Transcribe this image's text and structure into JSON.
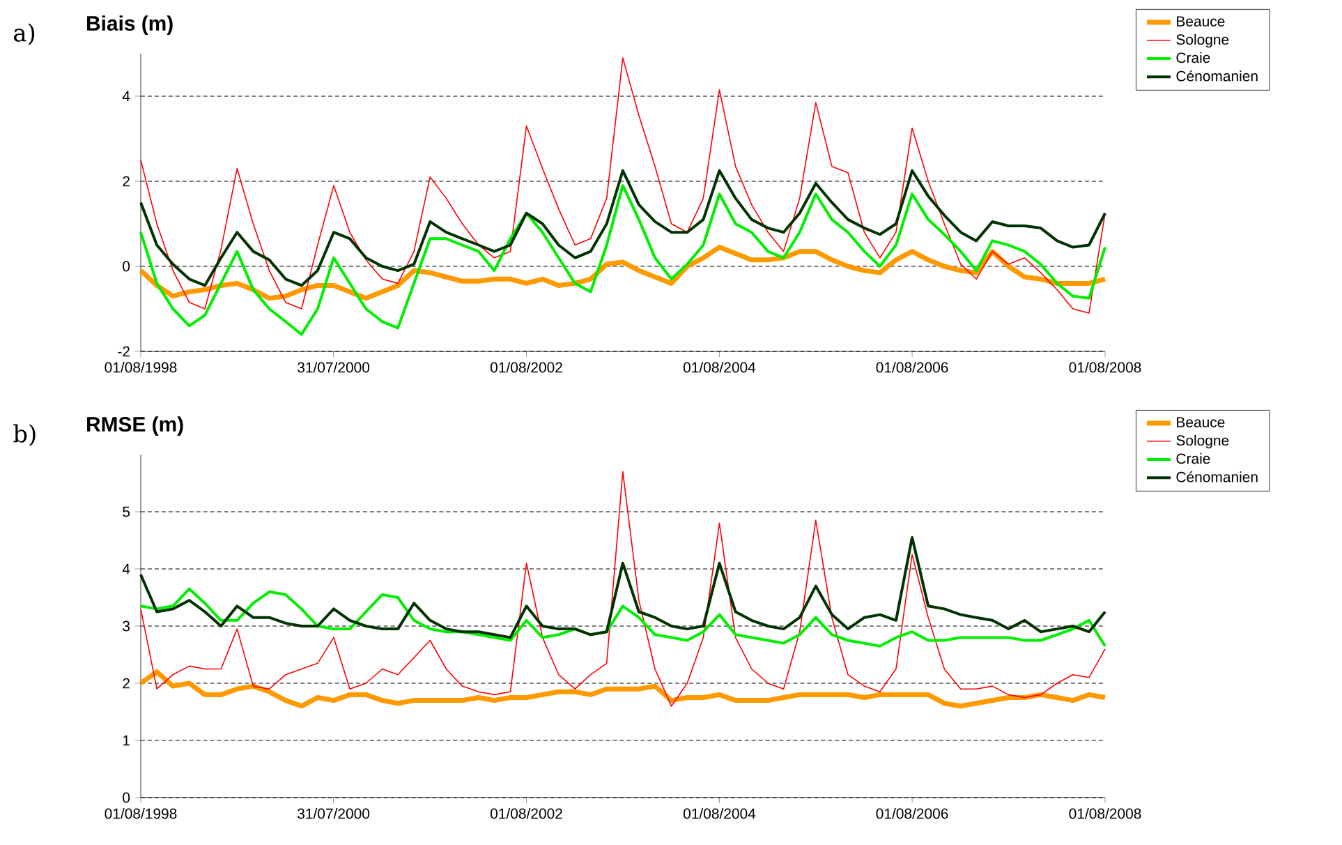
{
  "chart_data": [
    {
      "type": "line",
      "title": "Biais (m)",
      "annotations": [
        "a)"
      ],
      "x": [
        "1998-08",
        "1998-10",
        "1998-12",
        "1999-02",
        "1999-04",
        "1999-06",
        "1999-08",
        "1999-10",
        "1999-12",
        "2000-02",
        "2000-04",
        "2000-06",
        "2000-08",
        "2000-10",
        "2000-12",
        "2001-02",
        "2001-04",
        "2001-06",
        "2001-08",
        "2001-10",
        "2001-12",
        "2002-02",
        "2002-04",
        "2002-06",
        "2002-08",
        "2002-10",
        "2002-12",
        "2003-02",
        "2003-04",
        "2003-06",
        "2003-08",
        "2003-10",
        "2003-12",
        "2004-02",
        "2004-04",
        "2004-06",
        "2004-08",
        "2004-10",
        "2004-12",
        "2005-02",
        "2005-04",
        "2005-06",
        "2005-08",
        "2005-10",
        "2005-12",
        "2006-02",
        "2006-04",
        "2006-06",
        "2006-08",
        "2006-10",
        "2006-12",
        "2007-02",
        "2007-04",
        "2007-06",
        "2007-08",
        "2007-10",
        "2007-12",
        "2008-02",
        "2008-04",
        "2008-06",
        "2008-08"
      ],
      "xlim": [
        "1998-08-01",
        "2008-08-01"
      ],
      "xticks": [
        {
          "value": "1998-08-01",
          "label": "01/08/1998"
        },
        {
          "value": "2000-07-31",
          "label": "31/07/2000"
        },
        {
          "value": "2002-08-01",
          "label": "01/08/2002"
        },
        {
          "value": "2004-08-01",
          "label": "01/08/2004"
        },
        {
          "value": "2006-08-01",
          "label": "01/08/2006"
        },
        {
          "value": "2008-08-01",
          "label": "01/08/2008"
        }
      ],
      "ylim": [
        -2,
        5
      ],
      "yticks": [
        -2,
        0,
        2,
        4
      ],
      "grid": "y",
      "legend": "right",
      "series": [
        {
          "name": "Beauce",
          "color": "#ff9900",
          "values": [
            -0.1,
            -0.45,
            -0.7,
            -0.6,
            -0.55,
            -0.45,
            -0.4,
            -0.55,
            -0.75,
            -0.7,
            -0.55,
            -0.45,
            -0.45,
            -0.6,
            -0.75,
            -0.6,
            -0.45,
            -0.1,
            -0.15,
            -0.25,
            -0.35,
            -0.35,
            -0.3,
            -0.3,
            -0.4,
            -0.3,
            -0.45,
            -0.4,
            -0.3,
            0.05,
            0.1,
            -0.1,
            -0.25,
            -0.4,
            0,
            0.2,
            0.45,
            0.3,
            0.15,
            0.15,
            0.2,
            0.35,
            0.35,
            0.15,
            0,
            -0.1,
            -0.15,
            0.15,
            0.35,
            0.15,
            0,
            -0.1,
            -0.15,
            0.35,
            0,
            -0.25,
            -0.3,
            -0.4,
            -0.4,
            -0.4,
            -0.3
          ]
        },
        {
          "name": "Sologne",
          "color": "#ff0000",
          "values": [
            2.5,
            1.0,
            -0.1,
            -0.85,
            -1.0,
            0.4,
            2.3,
            1.0,
            -0.1,
            -0.85,
            -1.0,
            0.5,
            1.9,
            0.8,
            0.15,
            -0.3,
            -0.4,
            0.35,
            2.1,
            1.6,
            1.0,
            0.5,
            0.2,
            0.35,
            3.3,
            2.3,
            1.35,
            0.5,
            0.65,
            1.6,
            4.9,
            3.55,
            2.35,
            1.0,
            0.8,
            1.6,
            4.15,
            2.35,
            1.45,
            0.8,
            0.35,
            1.6,
            3.85,
            2.35,
            2.2,
            0.8,
            0.2,
            0.8,
            3.25,
            2.0,
            1.0,
            0.05,
            -0.3,
            0.35,
            0.05,
            0.2,
            -0.15,
            -0.55,
            -1.0,
            -1.1,
            1.25
          ]
        },
        {
          "name": "Craie",
          "color": "#00ee00",
          "values": [
            0.8,
            -0.4,
            -1.0,
            -1.4,
            -1.15,
            -0.4,
            0.35,
            -0.55,
            -1.0,
            -1.3,
            -1.6,
            -1.0,
            0.2,
            -0.4,
            -1.0,
            -1.3,
            -1.45,
            -0.4,
            0.65,
            0.65,
            0.5,
            0.35,
            -0.1,
            0.65,
            1.25,
            0.8,
            0.2,
            -0.4,
            -0.6,
            0.5,
            1.9,
            1.1,
            0.2,
            -0.3,
            0.05,
            0.5,
            1.7,
            1.0,
            0.8,
            0.35,
            0.2,
            0.8,
            1.7,
            1.1,
            0.8,
            0.35,
            0,
            0.5,
            1.7,
            1.1,
            0.75,
            0.35,
            -0.1,
            0.6,
            0.5,
            0.35,
            0.05,
            -0.4,
            -0.7,
            -0.75,
            0.45
          ]
        },
        {
          "name": "Cénomanien",
          "color": "#003300",
          "values": [
            1.5,
            0.5,
            0.05,
            -0.3,
            -0.45,
            0.2,
            0.8,
            0.35,
            0.15,
            -0.3,
            -0.45,
            -0.1,
            0.8,
            0.65,
            0.2,
            0,
            -0.1,
            0.05,
            1.05,
            0.8,
            0.65,
            0.5,
            0.35,
            0.5,
            1.25,
            1.0,
            0.5,
            0.2,
            0.35,
            1.0,
            2.25,
            1.45,
            1.05,
            0.8,
            0.8,
            1.1,
            2.25,
            1.6,
            1.1,
            0.9,
            0.8,
            1.25,
            1.95,
            1.5,
            1.1,
            0.9,
            0.75,
            1.0,
            2.25,
            1.65,
            1.2,
            0.8,
            0.6,
            1.05,
            0.95,
            0.95,
            0.9,
            0.6,
            0.45,
            0.5,
            1.25
          ]
        }
      ]
    },
    {
      "type": "line",
      "title": "RMSE (m)",
      "annotations": [
        "b)"
      ],
      "x": [
        "1998-08",
        "1998-10",
        "1998-12",
        "1999-02",
        "1999-04",
        "1999-06",
        "1999-08",
        "1999-10",
        "1999-12",
        "2000-02",
        "2000-04",
        "2000-06",
        "2000-08",
        "2000-10",
        "2000-12",
        "2001-02",
        "2001-04",
        "2001-06",
        "2001-08",
        "2001-10",
        "2001-12",
        "2002-02",
        "2002-04",
        "2002-06",
        "2002-08",
        "2002-10",
        "2002-12",
        "2003-02",
        "2003-04",
        "2003-06",
        "2003-08",
        "2003-10",
        "2003-12",
        "2004-02",
        "2004-04",
        "2004-06",
        "2004-08",
        "2004-10",
        "2004-12",
        "2005-02",
        "2005-04",
        "2005-06",
        "2005-08",
        "2005-10",
        "2005-12",
        "2006-02",
        "2006-04",
        "2006-06",
        "2006-08",
        "2006-10",
        "2006-12",
        "2007-02",
        "2007-04",
        "2007-06",
        "2007-08",
        "2007-10",
        "2007-12",
        "2008-02",
        "2008-04",
        "2008-06",
        "2008-08"
      ],
      "xlim": [
        "1998-08-01",
        "2008-08-01"
      ],
      "xticks": [
        {
          "value": "1998-08-01",
          "label": "01/08/1998"
        },
        {
          "value": "2000-07-31",
          "label": "31/07/2000"
        },
        {
          "value": "2002-08-01",
          "label": "01/08/2002"
        },
        {
          "value": "2004-08-01",
          "label": "01/08/2004"
        },
        {
          "value": "2006-08-01",
          "label": "01/08/2006"
        },
        {
          "value": "2008-08-01",
          "label": "01/08/2008"
        }
      ],
      "ylim": [
        0,
        6
      ],
      "yticks": [
        0,
        1,
        2,
        3,
        4,
        5
      ],
      "grid": "y",
      "legend": "right",
      "series": [
        {
          "name": "Beauce",
          "color": "#ff9900",
          "values": [
            2.0,
            2.2,
            1.95,
            2.0,
            1.8,
            1.8,
            1.9,
            1.95,
            1.85,
            1.7,
            1.6,
            1.75,
            1.7,
            1.8,
            1.8,
            1.7,
            1.65,
            1.7,
            1.7,
            1.7,
            1.7,
            1.75,
            1.7,
            1.75,
            1.75,
            1.8,
            1.85,
            1.85,
            1.8,
            1.9,
            1.9,
            1.9,
            1.95,
            1.7,
            1.75,
            1.75,
            1.8,
            1.7,
            1.7,
            1.7,
            1.75,
            1.8,
            1.8,
            1.8,
            1.8,
            1.75,
            1.8,
            1.8,
            1.8,
            1.8,
            1.65,
            1.6,
            1.65,
            1.7,
            1.75,
            1.75,
            1.8,
            1.75,
            1.7,
            1.8,
            1.75
          ]
        },
        {
          "name": "Sologne",
          "color": "#ff0000",
          "values": [
            3.3,
            1.9,
            2.15,
            2.3,
            2.25,
            2.25,
            2.95,
            1.95,
            1.9,
            2.15,
            2.25,
            2.35,
            2.8,
            1.9,
            2.0,
            2.25,
            2.15,
            2.45,
            2.75,
            2.25,
            1.95,
            1.85,
            1.8,
            1.85,
            4.1,
            2.8,
            2.15,
            1.9,
            2.15,
            2.35,
            5.7,
            3.45,
            2.25,
            1.6,
            2.0,
            2.8,
            4.8,
            2.8,
            2.25,
            2.0,
            1.9,
            2.9,
            4.85,
            3.15,
            2.15,
            1.95,
            1.85,
            2.25,
            4.25,
            3.15,
            2.25,
            1.9,
            1.9,
            1.95,
            1.8,
            1.75,
            1.8,
            2.0,
            2.15,
            2.1,
            2.6
          ]
        },
        {
          "name": "Craie",
          "color": "#00ee00",
          "values": [
            3.35,
            3.3,
            3.35,
            3.65,
            3.4,
            3.1,
            3.1,
            3.4,
            3.6,
            3.55,
            3.3,
            3.0,
            2.95,
            2.95,
            3.25,
            3.55,
            3.5,
            3.1,
            2.95,
            2.9,
            2.9,
            2.85,
            2.8,
            2.75,
            3.1,
            2.8,
            2.85,
            2.95,
            2.85,
            2.9,
            3.35,
            3.15,
            2.85,
            2.8,
            2.75,
            2.9,
            3.2,
            2.85,
            2.8,
            2.75,
            2.7,
            2.85,
            3.15,
            2.85,
            2.75,
            2.7,
            2.65,
            2.8,
            2.9,
            2.75,
            2.75,
            2.8,
            2.8,
            2.8,
            2.8,
            2.75,
            2.75,
            2.85,
            2.95,
            3.1,
            2.65
          ]
        },
        {
          "name": "Cénomanien",
          "color": "#003300",
          "values": [
            3.9,
            3.25,
            3.3,
            3.45,
            3.25,
            3.0,
            3.35,
            3.15,
            3.15,
            3.05,
            3.0,
            3.0,
            3.3,
            3.1,
            3.0,
            2.95,
            2.95,
            3.4,
            3.1,
            2.95,
            2.9,
            2.9,
            2.85,
            2.8,
            3.35,
            3.0,
            2.95,
            2.95,
            2.85,
            2.9,
            4.1,
            3.25,
            3.15,
            3.0,
            2.95,
            3.0,
            4.1,
            3.25,
            3.1,
            3.0,
            2.95,
            3.15,
            3.7,
            3.2,
            2.95,
            3.15,
            3.2,
            3.1,
            4.55,
            3.35,
            3.3,
            3.2,
            3.15,
            3.1,
            2.95,
            3.1,
            2.9,
            2.95,
            3.0,
            2.9,
            3.25
          ]
        }
      ]
    }
  ]
}
